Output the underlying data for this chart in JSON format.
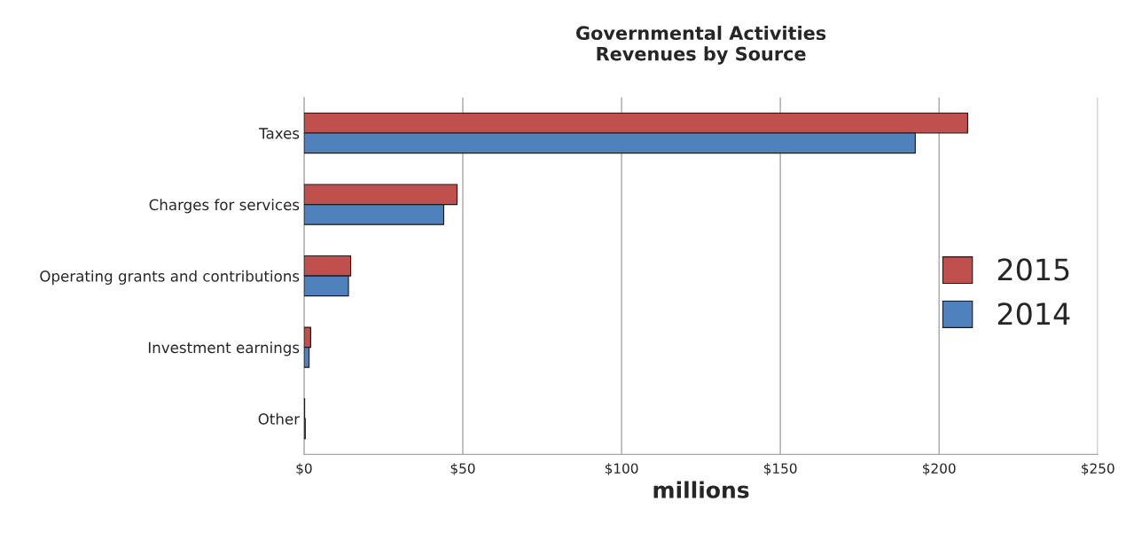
{
  "chart_data": {
    "type": "bar",
    "orientation": "horizontal",
    "title": "Governmental Activities\nRevenues by Source",
    "xlabel": "millions",
    "categories": [
      "Taxes",
      "Charges for services",
      "Operating grants and contributions",
      "Investment earnings",
      "Other"
    ],
    "series": [
      {
        "name": "2015",
        "color": "#c0504d",
        "values": [
          209,
          48.2,
          14.7,
          2.1,
          0.2
        ]
      },
      {
        "name": "2014",
        "color": "#4f81bd",
        "values": [
          192.5,
          44.0,
          14.0,
          1.6,
          0.4
        ]
      }
    ],
    "xlim": [
      0,
      250
    ],
    "xticks": [
      {
        "value": 0,
        "label": "$0"
      },
      {
        "value": 50,
        "label": "$50"
      },
      {
        "value": 100,
        "label": "$100"
      },
      {
        "value": 150,
        "label": "$150"
      },
      {
        "value": 200,
        "label": "$200"
      },
      {
        "value": 250,
        "label": "$250"
      }
    ],
    "grid": "x",
    "legend": "right"
  }
}
